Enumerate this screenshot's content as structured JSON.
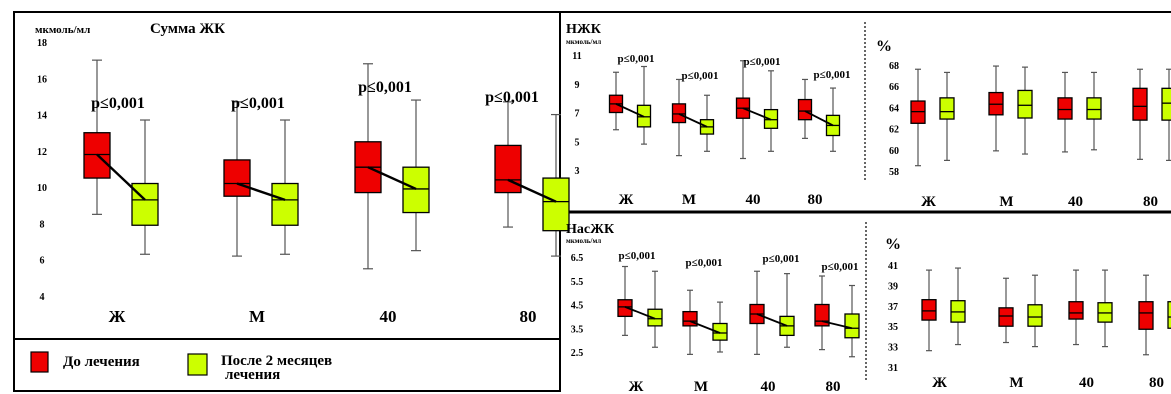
{
  "colors": {
    "before": "#ee0000",
    "after": "#ccff00",
    "frame": "#000000"
  },
  "legend": {
    "before_label": "До лечения",
    "after_label_line1": "После 2 месяцев",
    "after_label_line2": "лечения"
  },
  "chart_data": [
    {
      "type": "boxplot",
      "title": "Сумма ЖК",
      "ylabel": "мкмоль/мл",
      "ylim": [
        4,
        18
      ],
      "yticks": [
        "4",
        "6",
        "8",
        "10",
        "12",
        "14",
        "16",
        "18"
      ],
      "categories": [
        "Ж",
        "М",
        "40",
        "80"
      ],
      "pvalues": [
        "p≤0,001",
        "p≤0,001",
        "p≤0,001",
        "p≤0,001"
      ],
      "series": [
        {
          "name": "До лечения",
          "boxes": [
            {
              "min": 8.5,
              "q1": 10.5,
              "median": 11.8,
              "q3": 13.0,
              "max": 17.0
            },
            {
              "min": 6.2,
              "q1": 9.5,
              "median": 10.2,
              "q3": 11.5,
              "max": 14.7
            },
            {
              "min": 5.5,
              "q1": 9.7,
              "median": 11.1,
              "q3": 12.5,
              "max": 16.8
            },
            {
              "min": 7.8,
              "q1": 9.7,
              "median": 10.4,
              "q3": 12.3,
              "max": 14.7
            }
          ]
        },
        {
          "name": "После 2 месяцев лечения",
          "boxes": [
            {
              "min": 6.3,
              "q1": 7.9,
              "median": 9.3,
              "q3": 10.2,
              "max": 13.7
            },
            {
              "min": 6.3,
              "q1": 7.9,
              "median": 9.3,
              "q3": 10.2,
              "max": 13.7
            },
            {
              "min": 6.5,
              "q1": 8.6,
              "median": 9.9,
              "q3": 11.1,
              "max": 14.8
            },
            {
              "min": 6.2,
              "q1": 7.6,
              "median": 9.2,
              "q3": 10.5,
              "max": 14.0
            }
          ]
        }
      ]
    },
    {
      "type": "boxplot",
      "title": "НЖК",
      "ylabel": "мкмоль/мл",
      "ylim": [
        3,
        11
      ],
      "yticks": [
        "3",
        "5",
        "7",
        "9",
        "11"
      ],
      "categories": [
        "Ж",
        "М",
        "40",
        "80"
      ],
      "pvalues": [
        "p≤0,001",
        "p≤0,001",
        "p≤0,001",
        "p≤0,001"
      ],
      "series": [
        {
          "name": "До лечения",
          "boxes": [
            {
              "min": 5.8,
              "q1": 7.0,
              "median": 7.6,
              "q3": 8.2,
              "max": 9.8
            },
            {
              "min": 4.0,
              "q1": 6.3,
              "median": 6.9,
              "q3": 7.6,
              "max": 9.3
            },
            {
              "min": 3.8,
              "q1": 6.6,
              "median": 7.3,
              "q3": 8.0,
              "max": 10.6
            },
            {
              "min": 5.2,
              "q1": 6.5,
              "median": 7.1,
              "q3": 7.9,
              "max": 9.3
            }
          ]
        },
        {
          "name": "После 2 месяцев лечения",
          "boxes": [
            {
              "min": 4.8,
              "q1": 6.0,
              "median": 6.7,
              "q3": 7.5,
              "max": 10.2
            },
            {
              "min": 4.3,
              "q1": 5.5,
              "median": 6.0,
              "q3": 6.5,
              "max": 8.2
            },
            {
              "min": 4.3,
              "q1": 5.9,
              "median": 6.5,
              "q3": 7.2,
              "max": 9.9
            },
            {
              "min": 4.3,
              "q1": 5.4,
              "median": 6.1,
              "q3": 6.8,
              "max": 8.7
            }
          ]
        }
      ]
    },
    {
      "type": "boxplot",
      "title": "",
      "ylabel": "%",
      "ylim": [
        58,
        68
      ],
      "yticks": [
        "58",
        "60",
        "62",
        "64",
        "66",
        "68"
      ],
      "categories": [
        "Ж",
        "М",
        "40",
        "80"
      ],
      "pvalues": [],
      "series": [
        {
          "name": "До лечения",
          "boxes": [
            {
              "min": 58.5,
              "q1": 62.5,
              "median": 63.6,
              "q3": 64.6,
              "max": 67.6
            },
            {
              "min": 59.9,
              "q1": 63.3,
              "median": 64.3,
              "q3": 65.4,
              "max": 67.9
            },
            {
              "min": 59.8,
              "q1": 62.9,
              "median": 63.8,
              "q3": 64.9,
              "max": 67.3
            },
            {
              "min": 59.1,
              "q1": 62.8,
              "median": 64.1,
              "q3": 65.8,
              "max": 67.6
            }
          ]
        },
        {
          "name": "После 2 месяцев лечения",
          "boxes": [
            {
              "min": 59.0,
              "q1": 62.9,
              "median": 63.6,
              "q3": 64.9,
              "max": 67.3
            },
            {
              "min": 59.6,
              "q1": 63.0,
              "median": 64.2,
              "q3": 65.6,
              "max": 67.8
            },
            {
              "min": 60.0,
              "q1": 62.9,
              "median": 63.8,
              "q3": 64.9,
              "max": 67.3
            },
            {
              "min": 59.0,
              "q1": 62.8,
              "median": 64.4,
              "q3": 65.8,
              "max": 67.6
            }
          ]
        }
      ]
    },
    {
      "type": "boxplot",
      "title": "НасЖК",
      "ylabel": "мкмоль/мл",
      "ylim": [
        2.5,
        6.5
      ],
      "yticks": [
        "2.5",
        "3.5",
        "4.5",
        "5.5",
        "6.5"
      ],
      "categories": [
        "Ж",
        "М",
        "40",
        "80"
      ],
      "pvalues": [
        "p≤0,001",
        "p≤0,001",
        "p≤0,001",
        "p≤0,001"
      ],
      "series": [
        {
          "name": "До лечения",
          "boxes": [
            {
              "min": 3.2,
              "q1": 4.0,
              "median": 4.4,
              "q3": 4.7,
              "max": 6.1
            },
            {
              "min": 2.4,
              "q1": 3.6,
              "median": 3.8,
              "q3": 4.2,
              "max": 5.1
            },
            {
              "min": 2.4,
              "q1": 3.7,
              "median": 4.1,
              "q3": 4.5,
              "max": 5.9
            },
            {
              "min": 2.6,
              "q1": 3.6,
              "median": 3.8,
              "q3": 4.5,
              "max": 5.7
            }
          ]
        },
        {
          "name": "После 2 месяцев лечения",
          "boxes": [
            {
              "min": 2.7,
              "q1": 3.6,
              "median": 3.9,
              "q3": 4.3,
              "max": 5.9
            },
            {
              "min": 2.5,
              "q1": 3.0,
              "median": 3.3,
              "q3": 3.7,
              "max": 4.6
            },
            {
              "min": 2.7,
              "q1": 3.2,
              "median": 3.6,
              "q3": 4.0,
              "max": 5.8
            },
            {
              "min": 2.3,
              "q1": 3.1,
              "median": 3.5,
              "q3": 4.1,
              "max": 5.3
            }
          ]
        }
      ]
    },
    {
      "type": "boxplot",
      "title": "",
      "ylabel": "%",
      "ylim": [
        31,
        41
      ],
      "yticks": [
        "31",
        "33",
        "35",
        "37",
        "39",
        "41"
      ],
      "categories": [
        "Ж",
        "М",
        "40",
        "80"
      ],
      "pvalues": [],
      "series": [
        {
          "name": "До лечения",
          "boxes": [
            {
              "min": 32.6,
              "q1": 35.6,
              "median": 36.5,
              "q3": 37.6,
              "max": 40.5
            },
            {
              "min": 33.4,
              "q1": 35.0,
              "median": 36.0,
              "q3": 36.8,
              "max": 39.7
            },
            {
              "min": 33.2,
              "q1": 35.7,
              "median": 36.3,
              "q3": 37.4,
              "max": 40.5
            },
            {
              "min": 32.2,
              "q1": 34.7,
              "median": 36.3,
              "q3": 37.4,
              "max": 40.0
            }
          ]
        },
        {
          "name": "После 2 месяцев лечения",
          "boxes": [
            {
              "min": 33.2,
              "q1": 35.4,
              "median": 36.4,
              "q3": 37.5,
              "max": 40.7
            },
            {
              "min": 33.0,
              "q1": 35.0,
              "median": 35.9,
              "q3": 37.1,
              "max": 40.0
            },
            {
              "min": 33.0,
              "q1": 35.4,
              "median": 36.3,
              "q3": 37.3,
              "max": 40.5
            },
            {
              "min": 32.8,
              "q1": 34.8,
              "median": 35.9,
              "q3": 37.4,
              "max": 40.3
            }
          ]
        }
      ]
    }
  ]
}
